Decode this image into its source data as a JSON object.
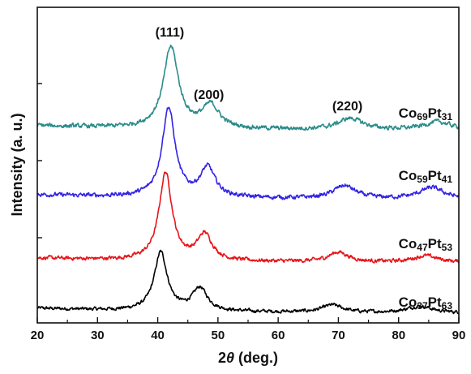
{
  "chart_data": {
    "type": "line",
    "title": "",
    "xlabel_parts": [
      "2",
      "θ",
      " (deg.)"
    ],
    "ylabel": "Intensity (a. u.)",
    "xlim": [
      20,
      90
    ],
    "xticks": [
      20,
      30,
      40,
      50,
      60,
      70,
      80,
      90
    ],
    "y_has_tick_labels": false,
    "grid": false,
    "legend": "none",
    "peak_labels": [
      {
        "text": "(111)",
        "x": 42
      },
      {
        "text": "(200)",
        "x": 48.5
      },
      {
        "text": "(220)",
        "x": 71.5
      }
    ],
    "series": [
      {
        "name_parts": [
          {
            "t": "Co",
            "sub": false
          },
          {
            "t": "37",
            "sub": true
          },
          {
            "t": "Pt",
            "sub": false
          },
          {
            "t": "63",
            "sub": true
          }
        ],
        "color": "#000000",
        "baseline": 0,
        "peaks": [
          {
            "center": 40.5,
            "height": 72,
            "width": 1.3
          },
          {
            "center": 47.0,
            "height": 28,
            "width": 1.5
          },
          {
            "center": 69.0,
            "height": 9,
            "width": 2.0
          },
          {
            "center": 83.5,
            "height": 8,
            "width": 2.5
          }
        ],
        "noise": 1.8
      },
      {
        "name_parts": [
          {
            "t": "Co",
            "sub": false
          },
          {
            "t": "47",
            "sub": true
          },
          {
            "t": "Pt",
            "sub": false
          },
          {
            "t": "53",
            "sub": true
          }
        ],
        "color": "#e8141a",
        "baseline": 62,
        "peaks": [
          {
            "center": 41.3,
            "height": 108,
            "width": 1.3
          },
          {
            "center": 47.8,
            "height": 32,
            "width": 1.5
          },
          {
            "center": 70.0,
            "height": 12,
            "width": 2.0
          },
          {
            "center": 84.5,
            "height": 8,
            "width": 2.5
          }
        ],
        "noise": 2.0
      },
      {
        "name_parts": [
          {
            "t": "Co",
            "sub": false
          },
          {
            "t": "59",
            "sub": true
          },
          {
            "t": "Pt",
            "sub": false
          },
          {
            "t": "41",
            "sub": true
          }
        ],
        "color": "#3322e6",
        "baseline": 140,
        "peaks": [
          {
            "center": 41.8,
            "height": 110,
            "width": 1.3
          },
          {
            "center": 48.3,
            "height": 36,
            "width": 1.5
          },
          {
            "center": 71.0,
            "height": 16,
            "width": 2.2
          },
          {
            "center": 85.5,
            "height": 14,
            "width": 2.5
          }
        ],
        "noise": 2.2
      },
      {
        "name_parts": [
          {
            "t": "Co",
            "sub": false
          },
          {
            "t": "69",
            "sub": true
          },
          {
            "t": "Pt",
            "sub": false
          },
          {
            "t": "31",
            "sub": true
          }
        ],
        "color": "#2a8c8a",
        "baseline": 225,
        "peaks": [
          {
            "center": 42.2,
            "height": 100,
            "width": 1.5
          },
          {
            "center": 48.8,
            "height": 28,
            "width": 1.7
          },
          {
            "center": 72.0,
            "height": 14,
            "width": 2.5
          },
          {
            "center": 86.5,
            "height": 10,
            "width": 2.8
          }
        ],
        "noise": 2.3
      }
    ]
  }
}
